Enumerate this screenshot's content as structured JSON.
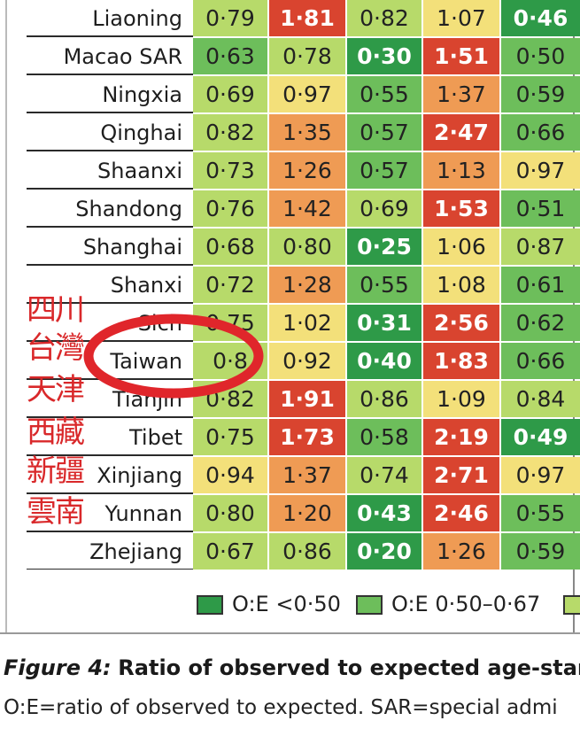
{
  "chart_data": {
    "type": "table",
    "columns_visible": 5,
    "rows": [
      {
        "region": "Liaoning",
        "values": [
          "0·79",
          "1·81",
          "0·82",
          "1·07",
          "0·46"
        ]
      },
      {
        "region": "Macao SAR",
        "values": [
          "0·63",
          "0·78",
          "0·30",
          "1·51",
          "0·50"
        ]
      },
      {
        "region": "Ningxia",
        "values": [
          "0·69",
          "0·97",
          "0·55",
          "1·37",
          "0·59"
        ]
      },
      {
        "region": "Qinghai",
        "values": [
          "0·82",
          "1·35",
          "0·57",
          "2·47",
          "0·66"
        ]
      },
      {
        "region": "Shaanxi",
        "values": [
          "0·73",
          "1·26",
          "0·57",
          "1·13",
          "0·97"
        ]
      },
      {
        "region": "Shandong",
        "values": [
          "0·76",
          "1·42",
          "0·69",
          "1·53",
          "0·51"
        ]
      },
      {
        "region": "Shanghai",
        "values": [
          "0·68",
          "0·80",
          "0·25",
          "1·06",
          "0·87"
        ]
      },
      {
        "region": "Shanxi",
        "values": [
          "0·72",
          "1·28",
          "0·55",
          "1·08",
          "0·61"
        ]
      },
      {
        "region": "Sich",
        "values": [
          "0·75",
          "1·02",
          "0·31",
          "2·56",
          "0·62"
        ]
      },
      {
        "region": "Taiwan",
        "values": [
          "0·8",
          "0·92",
          "0·40",
          "1·83",
          "0·66"
        ]
      },
      {
        "region": "Tianjin",
        "values": [
          "0·82",
          "1·91",
          "0·86",
          "1·09",
          "0·84"
        ]
      },
      {
        "region": "Tibet",
        "values": [
          "0·75",
          "1·73",
          "0·58",
          "2·19",
          "0·49"
        ]
      },
      {
        "region": "Xinjiang",
        "values": [
          "0·94",
          "1·37",
          "0·74",
          "2·71",
          "0·97"
        ]
      },
      {
        "region": "Yunnan",
        "values": [
          "0·80",
          "1·20",
          "0·43",
          "2·46",
          "0·55"
        ]
      },
      {
        "region": "Zhejiang",
        "values": [
          "0·67",
          "0·86",
          "0·20",
          "1·26",
          "0·59"
        ]
      }
    ],
    "legend": [
      {
        "label": "O:E <0·50",
        "color": "#2e9a48"
      },
      {
        "label": "O:E 0·50–0·67",
        "color": "#6dbe5b"
      }
    ],
    "color_scale": {
      "dark_green": "#2e9a48",
      "green": "#6dbe5b",
      "light_green": "#b7da6a",
      "yellow": "#f3e07a",
      "orange": "#ef9b54",
      "red": "#d9442f"
    }
  },
  "caption": {
    "label": "Figure 4:",
    "title": "Ratio of observed to expected age-standa",
    "note": "O:E=ratio of observed to expected. SAR=special admi"
  },
  "annotations": {
    "hanzi": [
      "四川",
      "台灣",
      "天津",
      "西藏",
      "新疆",
      "雲南"
    ],
    "circle_color": "#e0262b"
  }
}
